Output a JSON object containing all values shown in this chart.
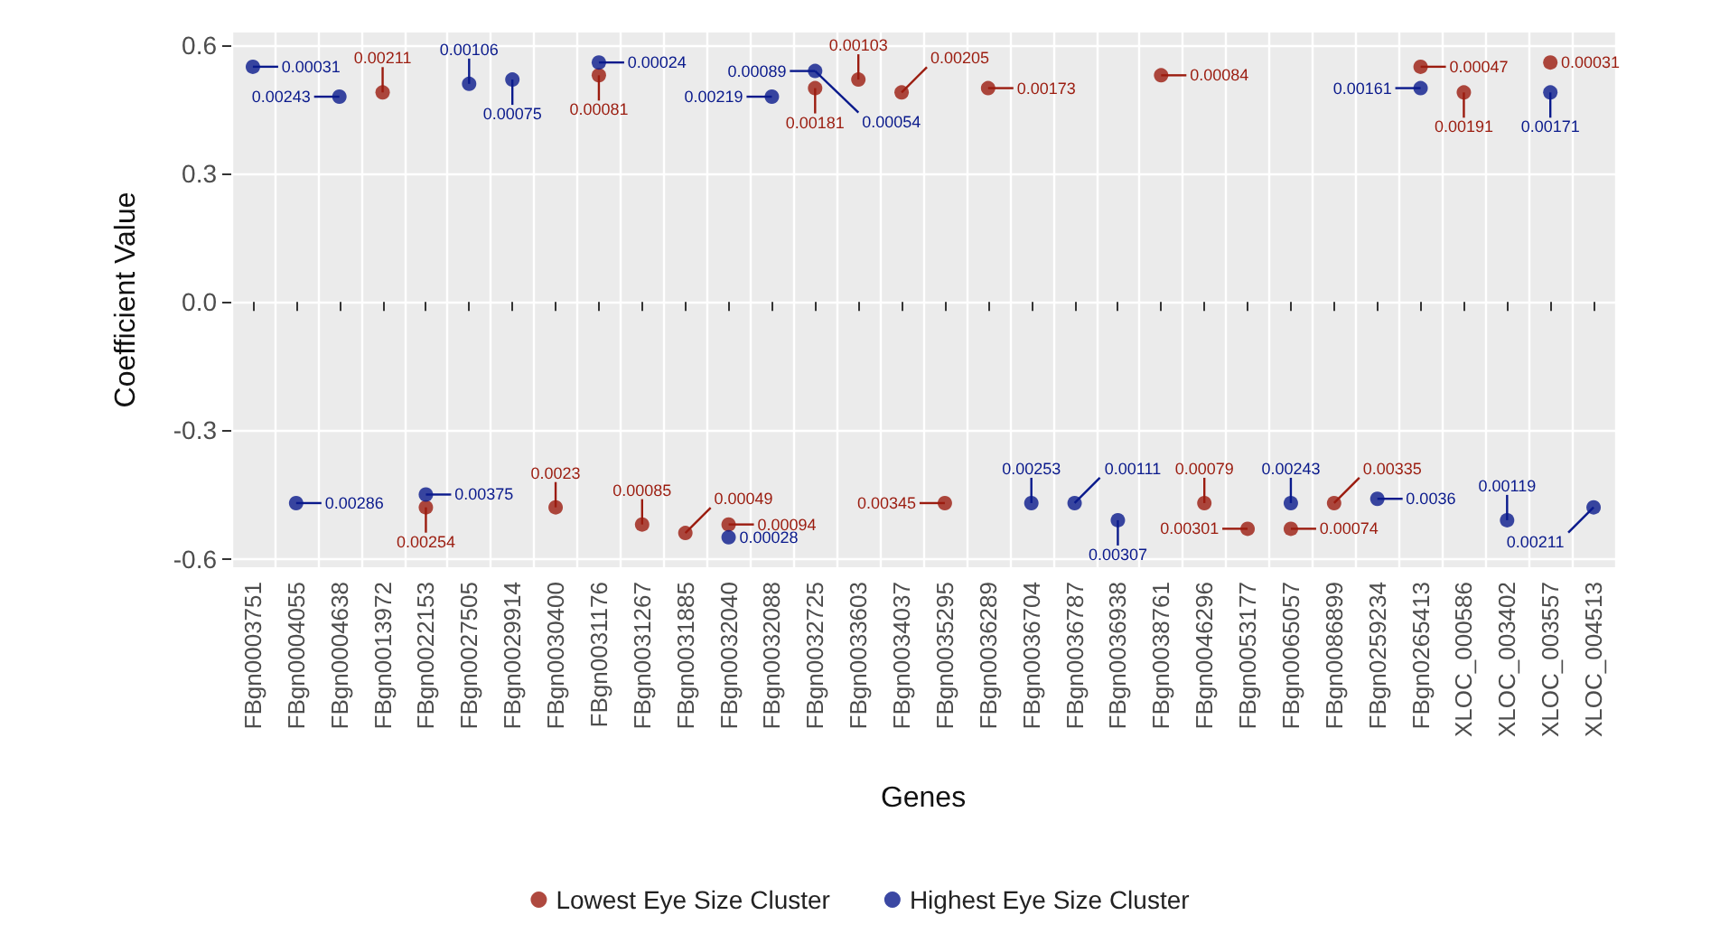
{
  "chart_data": {
    "type": "scatter",
    "xlabel": "Genes",
    "ylabel": "Coefficient Value",
    "categories": [
      "FBgn0003751",
      "FBgn0004055",
      "FBgn0004638",
      "FBgn0013972",
      "FBgn0022153",
      "FBgn0027505",
      "FBgn0029914",
      "FBgn0030400",
      "FBgn0031176",
      "FBgn0031267",
      "FBgn0031885",
      "FBgn0032040",
      "FBgn0032088",
      "FBgn0032725",
      "FBgn0033603",
      "FBgn0034037",
      "FBgn0035295",
      "FBgn0036289",
      "FBgn0036704",
      "FBgn0036787",
      "FBgn0036938",
      "FBgn0038761",
      "FBgn0046296",
      "FBgn0053177",
      "FBgn0065057",
      "FBgn0086899",
      "FBgn0259234",
      "FBgn0265413",
      "XLOC_000586",
      "XLOC_003402",
      "XLOC_003557",
      "XLOC_004513"
    ],
    "series": [
      {
        "name": "Lowest Eye Size Cluster",
        "color": "#9b1c0f",
        "values": [
          null,
          null,
          null,
          0.49,
          -0.48,
          null,
          null,
          -0.48,
          0.53,
          -0.52,
          -0.54,
          -0.52,
          null,
          0.5,
          0.52,
          0.49,
          -0.47,
          0.5,
          null,
          null,
          null,
          0.53,
          -0.47,
          -0.53,
          -0.53,
          -0.47,
          null,
          0.55,
          0.49,
          null,
          0.56,
          null
        ]
      },
      {
        "name": "Highest Eye Size Cluster",
        "color": "#0a1a8c",
        "values": [
          0.55,
          -0.47,
          0.48,
          null,
          -0.45,
          0.51,
          0.52,
          null,
          0.56,
          null,
          null,
          -0.55,
          0.48,
          0.54,
          null,
          null,
          null,
          null,
          -0.47,
          -0.47,
          -0.51,
          null,
          null,
          null,
          -0.47,
          null,
          -0.46,
          0.5,
          null,
          -0.51,
          0.49,
          -0.48
        ]
      }
    ],
    "annotations": [
      {
        "text": "0.00031",
        "x": "FBgn0003751",
        "y": 0.55
      },
      {
        "text": "0.00286",
        "x": "FBgn0004055",
        "y": -0.47
      },
      {
        "text": "0.00243",
        "x": "FBgn0004638",
        "y": 0.48
      },
      {
        "text": "0.00211",
        "x": "FBgn0013972",
        "y": 0.49
      },
      {
        "text": "0.00375",
        "x": "FBgn0022153",
        "y": -0.45
      },
      {
        "text": "0.00254",
        "x": "FBgn0022153",
        "y": -0.48
      },
      {
        "text": "0.00106",
        "x": "FBgn0027505",
        "y": 0.51
      },
      {
        "text": "0.00075",
        "x": "FBgn0029914",
        "y": 0.52
      },
      {
        "text": "0.0023",
        "x": "FBgn0030400",
        "y": -0.48
      },
      {
        "text": "0.00024",
        "x": "FBgn0031176",
        "y": 0.56
      },
      {
        "text": "0.00081",
        "x": "FBgn0031176",
        "y": 0.53
      },
      {
        "text": "0.00085",
        "x": "FBgn0031267",
        "y": -0.52
      },
      {
        "text": "0.00049",
        "x": "FBgn0031885",
        "y": -0.54
      },
      {
        "text": "0.00094",
        "x": "FBgn0032040",
        "y": -0.52
      },
      {
        "text": "0.00028",
        "x": "FBgn0032040",
        "y": -0.55
      },
      {
        "text": "0.00219",
        "x": "FBgn0032088",
        "y": 0.48
      },
      {
        "text": "0.00181",
        "x": "FBgn0032725",
        "y": 0.5
      },
      {
        "text": "0.00089",
        "x": "FBgn0032725",
        "y": 0.54
      },
      {
        "text": "0.00054",
        "x": "FBgn0032725",
        "y": 0.54
      },
      {
        "text": "0.00103",
        "x": "FBgn0033603",
        "y": 0.52
      },
      {
        "text": "0.00205",
        "x": "FBgn0034037",
        "y": 0.49
      },
      {
        "text": "0.00345",
        "x": "FBgn0035295",
        "y": -0.47
      },
      {
        "text": "0.00173",
        "x": "FBgn0036289",
        "y": 0.5
      },
      {
        "text": "0.00253",
        "x": "FBgn0036704",
        "y": -0.47
      },
      {
        "text": "0.00111",
        "x": "FBgn0036787",
        "y": -0.47
      },
      {
        "text": "0.00307",
        "x": "FBgn0036938",
        "y": -0.51
      },
      {
        "text": "0.00084",
        "x": "FBgn0038761",
        "y": 0.53
      },
      {
        "text": "0.00079",
        "x": "FBgn0046296",
        "y": -0.47
      },
      {
        "text": "0.00301",
        "x": "FBgn0053177",
        "y": -0.53
      },
      {
        "text": "0.00243",
        "x": "FBgn0065057",
        "y": -0.47
      },
      {
        "text": "0.00074",
        "x": "FBgn0065057",
        "y": -0.53
      },
      {
        "text": "0.00335",
        "x": "FBgn0086899",
        "y": -0.47
      },
      {
        "text": "0.0036",
        "x": "FBgn0259234",
        "y": -0.46
      },
      {
        "text": "0.00047",
        "x": "FBgn0265413",
        "y": 0.55
      },
      {
        "text": "0.00161",
        "x": "FBgn0265413",
        "y": 0.5
      },
      {
        "text": "0.00191",
        "x": "XLOC_000586",
        "y": 0.49
      },
      {
        "text": "0.00119",
        "x": "XLOC_003402",
        "y": -0.51
      },
      {
        "text": "0.00171",
        "x": "XLOC_003557",
        "y": 0.49
      },
      {
        "text": "0.00031",
        "x": "XLOC_003557",
        "y": 0.56
      },
      {
        "text": "0.00211",
        "x": "XLOC_004513",
        "y": -0.48
      }
    ],
    "ylim": [
      -0.62,
      0.63
    ],
    "yticks": [
      {
        "value": -0.6,
        "label": "-0.6"
      },
      {
        "value": -0.3,
        "label": "-0.3"
      },
      {
        "value": 0,
        "label": "0.0"
      },
      {
        "value": 0.3,
        "label": "0.3"
      },
      {
        "value": 0.6,
        "label": "0.6"
      }
    ],
    "grid": true,
    "legend": "bottom",
    "marker": "circle"
  }
}
